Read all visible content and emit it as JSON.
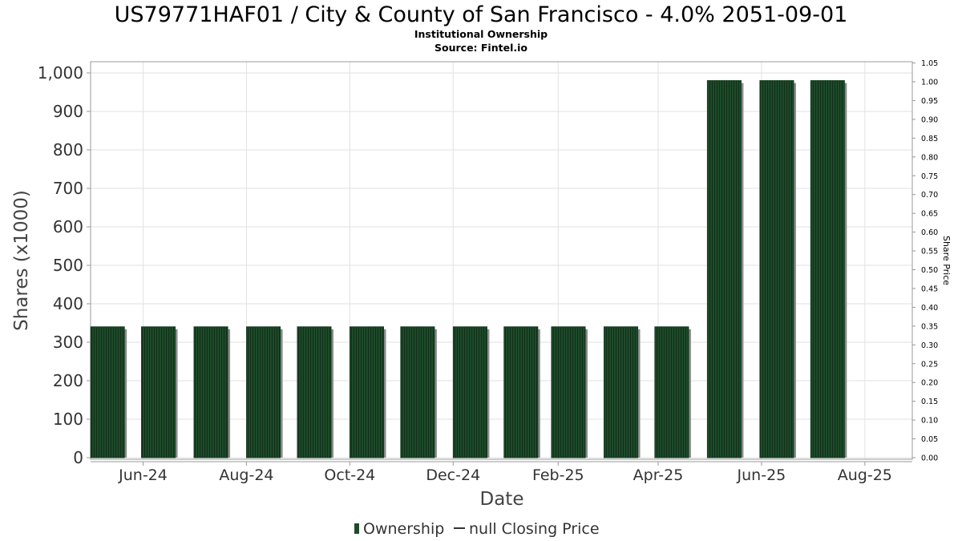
{
  "chart_data": {
    "type": "bar",
    "title": "US79771HAF01 / City & County of San Francisco - 4.0% 2051-09-01",
    "subtitle": "Institutional Ownership",
    "source": "Source: Fintel.io",
    "xlabel": "Date",
    "ylabel": "Shares (x1000)",
    "y2label": "Share Price",
    "ylim": [
      0,
      1025
    ],
    "y_ticks": [
      0,
      100,
      200,
      300,
      400,
      500,
      600,
      700,
      800,
      900,
      1000
    ],
    "y_tick_labels": [
      "0",
      "100",
      "200",
      "300",
      "400",
      "500",
      "600",
      "700",
      "800",
      "900",
      "1,000"
    ],
    "y2lim": [
      0,
      1.05
    ],
    "y2_tick_labels": [
      "0.00",
      "0.05",
      "0.10",
      "0.15",
      "0.20",
      "0.25",
      "0.30",
      "0.35",
      "0.40",
      "0.45",
      "0.50",
      "0.55",
      "0.60",
      "0.65",
      "0.70",
      "0.75",
      "0.80",
      "0.85",
      "0.90",
      "0.95",
      "1.00",
      "1.05"
    ],
    "x_range_days": [
      0,
      485
    ],
    "x_ticks": [
      {
        "label": "Jun-24",
        "day": 31
      },
      {
        "label": "Aug-24",
        "day": 92
      },
      {
        "label": "Oct-24",
        "day": 153
      },
      {
        "label": "Dec-24",
        "day": 214
      },
      {
        "label": "Feb-25",
        "day": 276
      },
      {
        "label": "Apr-25",
        "day": 335
      },
      {
        "label": "Jun-25",
        "day": 396
      },
      {
        "label": "Aug-25",
        "day": 457
      }
    ],
    "bars": [
      {
        "date": "2024-05",
        "day": 10,
        "value": 340
      },
      {
        "date": "2024-06",
        "day": 40,
        "value": 340
      },
      {
        "date": "2024-07",
        "day": 71,
        "value": 340
      },
      {
        "date": "2024-08",
        "day": 102,
        "value": 340
      },
      {
        "date": "2024-09",
        "day": 132,
        "value": 340
      },
      {
        "date": "2024-10",
        "day": 163,
        "value": 340
      },
      {
        "date": "2024-11",
        "day": 193,
        "value": 340
      },
      {
        "date": "2024-12",
        "day": 224,
        "value": 340
      },
      {
        "date": "2025-01",
        "day": 254,
        "value": 340
      },
      {
        "date": "2025-02",
        "day": 282,
        "value": 340
      },
      {
        "date": "2025-03",
        "day": 313,
        "value": 340
      },
      {
        "date": "2025-04",
        "day": 343,
        "value": 340
      },
      {
        "date": "2025-05",
        "day": 374,
        "value": 980
      },
      {
        "date": "2025-06",
        "day": 405,
        "value": 980
      },
      {
        "date": "2025-07",
        "day": 435,
        "value": 980
      }
    ],
    "legend": [
      {
        "label": "Ownership",
        "color": "#1e4a2a"
      },
      {
        "label": "null Closing Price",
        "color": "#333333"
      }
    ],
    "bar_color": "#1e4a2a"
  }
}
